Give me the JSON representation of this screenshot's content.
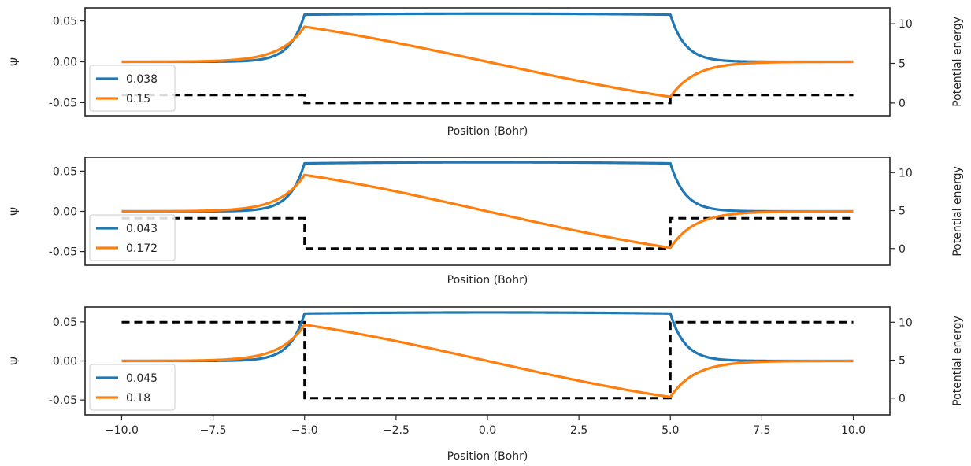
{
  "colors": {
    "series1": "#1f77b4",
    "series2": "#ff7f0e",
    "potential": "#000000",
    "frame": "#262626"
  },
  "chart_data": [
    {
      "type": "line",
      "xlabel": "Position (Bohr)",
      "ylabel": "Ψ",
      "y2label": "Potential energy",
      "xlim": [
        -11,
        11
      ],
      "ylim": [
        -0.066,
        0.066
      ],
      "y2lim": [
        -1.6,
        12
      ],
      "xticks": [],
      "yticks": [
        "0.05",
        "0.00",
        "-0.05"
      ],
      "y2ticks": [
        "10",
        "5",
        "0"
      ],
      "potential": {
        "V0": 1,
        "a": 5
      },
      "series": [
        {
          "name": "0.038",
          "k": 0.04095,
          "A": 0.059,
          "kind": "sym"
        },
        {
          "name": "0.15",
          "k": 0.08146,
          "A": 0.059,
          "kind": "anti"
        }
      ],
      "legend": "lower-left",
      "grid": false
    },
    {
      "type": "line",
      "xlabel": "Position (Bohr)",
      "ylabel": "Ψ",
      "y2label": "Potential energy",
      "xlim": [
        -11,
        11
      ],
      "ylim": [
        -0.067,
        0.067
      ],
      "y2lim": [
        -2.2,
        12
      ],
      "xticks": [],
      "yticks": [
        "0.05",
        "0.00",
        "-0.05"
      ],
      "y2ticks": [
        "10",
        "5",
        "0"
      ],
      "potential": {
        "V0": 4,
        "a": 5
      },
      "series": [
        {
          "name": "0.043",
          "k": 0.04193,
          "A": 0.061,
          "kind": "sym"
        },
        {
          "name": "0.172",
          "k": 0.08363,
          "A": 0.061,
          "kind": "anti"
        }
      ],
      "legend": "lower-left",
      "grid": false
    },
    {
      "type": "line",
      "xlabel": "Position (Bohr)",
      "ylabel": "Ψ",
      "y2label": "Potential energy",
      "xlim": [
        -11,
        11
      ],
      "ylim": [
        -0.069,
        0.069
      ],
      "y2lim": [
        -2.2,
        12
      ],
      "xticks": [
        "−10.0",
        "−7.5",
        "−5.0",
        "−2.5",
        "0.0",
        "2.5",
        "5.0",
        "7.5",
        "10.0"
      ],
      "yticks": [
        "0.05",
        "0.00",
        "-0.05"
      ],
      "y2ticks": [
        "10",
        "5",
        "0"
      ],
      "potential": {
        "V0": 10,
        "a": 5
      },
      "series": [
        {
          "name": "0.045",
          "k": 0.04231,
          "A": 0.062,
          "kind": "sym"
        },
        {
          "name": "0.18",
          "k": 0.08425,
          "A": 0.062,
          "kind": "anti"
        }
      ],
      "legend": "lower-left",
      "grid": false
    }
  ]
}
